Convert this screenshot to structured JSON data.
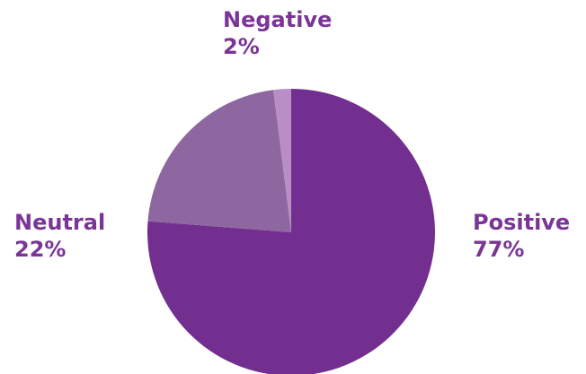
{
  "chart_data": {
    "type": "pie",
    "title": "",
    "slices": [
      {
        "label": "Positive",
        "value": 77,
        "value_label": "77%",
        "color": "#722f8f"
      },
      {
        "label": "Neutral",
        "value": 22,
        "value_label": "22%",
        "color": "#8f67a0"
      },
      {
        "label": "Negative",
        "value": 2,
        "value_label": "2%",
        "color": "#b98dc5"
      }
    ],
    "start_angle_deg": 0,
    "direction": "clockwise",
    "legend": "none",
    "label_color": "#7a3596"
  }
}
